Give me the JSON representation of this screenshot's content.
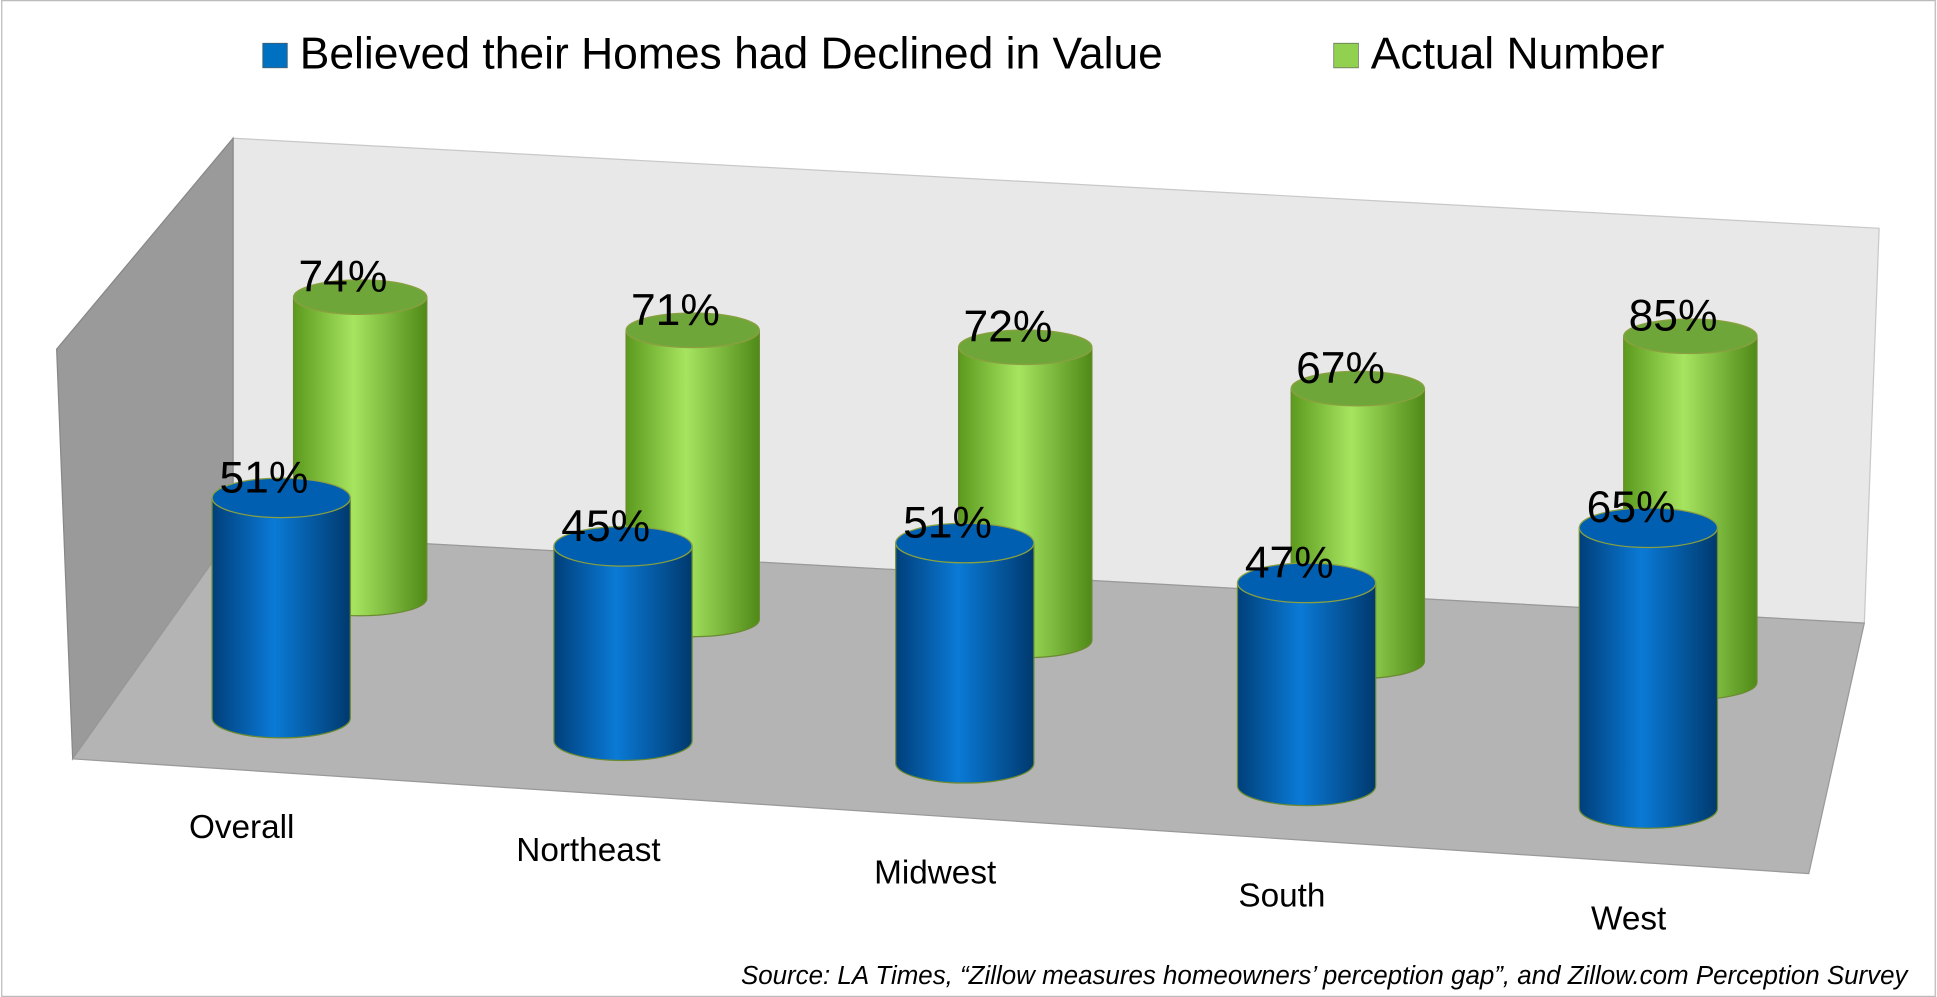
{
  "chart_data": {
    "type": "bar3d",
    "categories": [
      "Overall",
      "Northeast",
      "Midwest",
      "South",
      "West"
    ],
    "series": [
      {
        "name": "Believed their Homes had Declined in Value",
        "color": "#0070c0",
        "values": [
          51,
          45,
          51,
          47,
          65
        ],
        "value_labels": [
          "51%",
          "45%",
          "51%",
          "47%",
          "65%"
        ]
      },
      {
        "name": "Actual Number",
        "color": "#92d050",
        "values": [
          74,
          71,
          72,
          67,
          85
        ],
        "value_labels": [
          "74%",
          "71%",
          "72%",
          "67%",
          "85%"
        ]
      }
    ],
    "legend": "top",
    "annotation": "Source: LA Times, “Zillow measures homeowners’ perception gap”, and Zillow.com Perception Survey"
  }
}
